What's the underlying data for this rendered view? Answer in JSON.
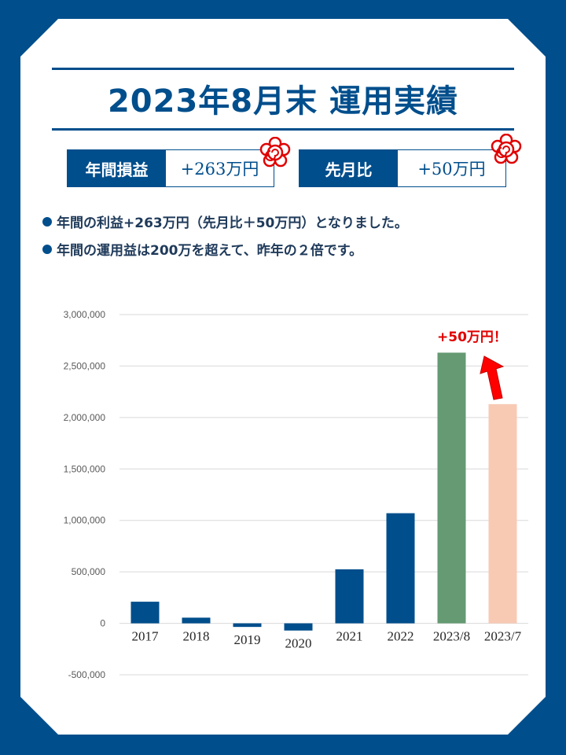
{
  "title": "2023年8月末 運用実績",
  "summary": [
    {
      "label": "年間損益",
      "value": "+263万円"
    },
    {
      "label": "先月比",
      "value": "+50万円"
    }
  ],
  "bullets": [
    "年間の利益+263万円（先月比＋50万円）となりました。",
    "年間の運用益は200万を超えて、昨年の２倍です。"
  ],
  "annotation": "+50万円！",
  "colors": {
    "brand": "#004e8c",
    "highlight": "#659a72",
    "previous": "#f8cab4",
    "accent_red": "#e00000"
  },
  "chart_data": {
    "type": "bar",
    "categories": [
      "2017",
      "2018",
      "2019",
      "2020",
      "2021",
      "2022",
      "2023/8",
      "2023/7"
    ],
    "values": [
      210000,
      55000,
      -35000,
      -70000,
      525000,
      1070000,
      2630000,
      2130000
    ],
    "bar_colors": [
      "#004e8c",
      "#004e8c",
      "#004e8c",
      "#004e8c",
      "#004e8c",
      "#004e8c",
      "#659a72",
      "#f8cab4"
    ],
    "ylim": [
      -500000,
      3000000
    ],
    "yticks": [
      -500000,
      0,
      500000,
      1000000,
      1500000,
      2000000,
      2500000,
      3000000
    ],
    "ytick_labels": [
      "-500,000",
      "0",
      "500,000",
      "1,000,000",
      "1,500,000",
      "2,000,000",
      "2,500,000",
      "3,000,000"
    ],
    "grid": true
  }
}
